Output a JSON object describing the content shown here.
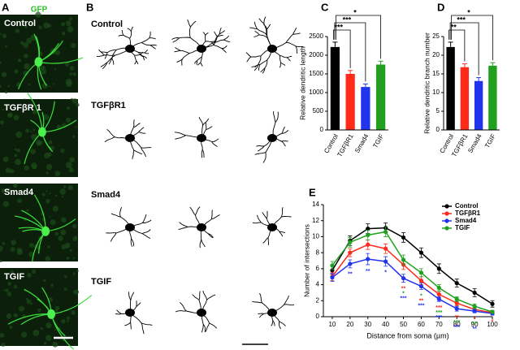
{
  "figure": {
    "A": {
      "label": "A",
      "stain": "GFP",
      "rows": [
        "Control",
        "TGFβR 1",
        "Smad4",
        "TGIF"
      ]
    },
    "B": {
      "label": "B",
      "rows": [
        "Control",
        "TGFβR1",
        "Smad4",
        "TGIF"
      ]
    }
  },
  "chart_data": [
    {
      "panel": "C",
      "type": "bar",
      "ylabel": "Relative dendritic length",
      "categories": [
        "Control",
        "TGFβR1",
        "Smad4",
        "TGIF"
      ],
      "values": [
        2220,
        1500,
        1150,
        1750
      ],
      "errors": [
        130,
        90,
        80,
        90
      ],
      "colors": [
        "#000000",
        "#ff2a1a",
        "#2233ee",
        "#1fa01f"
      ],
      "ylim": [
        0,
        2500
      ],
      "yticks": [
        0,
        500,
        1000,
        1500,
        2000,
        2500
      ],
      "significance": [
        {
          "from": 0,
          "to": 1,
          "label": "***"
        },
        {
          "from": 0,
          "to": 2,
          "label": "***"
        },
        {
          "from": 0,
          "to": 3,
          "label": "*"
        }
      ]
    },
    {
      "panel": "D",
      "type": "bar",
      "ylabel": "Relative dendritic branch number",
      "categories": [
        "Control",
        "TGFβR1",
        "Smad4",
        "TGIF"
      ],
      "values": [
        22.2,
        16.8,
        13.1,
        17.2
      ],
      "errors": [
        1.3,
        0.9,
        0.9,
        0.8
      ],
      "colors": [
        "#000000",
        "#ff2a1a",
        "#2233ee",
        "#1fa01f"
      ],
      "ylim": [
        0,
        25
      ],
      "yticks": [
        0,
        5,
        10,
        15,
        20,
        25
      ],
      "significance": [
        {
          "from": 0,
          "to": 1,
          "label": "**"
        },
        {
          "from": 0,
          "to": 2,
          "label": "***"
        },
        {
          "from": 0,
          "to": 3,
          "label": "*"
        }
      ]
    },
    {
      "panel": "E",
      "type": "line",
      "xlabel": "Distance from soma (µm)",
      "ylabel": "Number of intersections",
      "x": [
        10,
        20,
        30,
        40,
        50,
        60,
        70,
        80,
        90,
        100
      ],
      "series": [
        {
          "name": "Control",
          "color": "#000000",
          "values": [
            5.8,
            9.5,
            11.0,
            11.1,
            9.9,
            8.0,
            6.0,
            4.2,
            3.0,
            1.6
          ],
          "errors": [
            0.5,
            0.6,
            0.6,
            0.6,
            0.6,
            0.6,
            0.6,
            0.5,
            0.5,
            0.4
          ]
        },
        {
          "name": "TGFβR1",
          "color": "#ff2a1a",
          "values": [
            5.0,
            8.0,
            9.0,
            8.5,
            6.5,
            4.5,
            2.8,
            1.7,
            0.9,
            0.5
          ],
          "errors": [
            0.5,
            0.5,
            0.6,
            0.6,
            0.6,
            0.5,
            0.4,
            0.3,
            0.3,
            0.2
          ]
        },
        {
          "name": "Smad4",
          "color": "#2233ee",
          "values": [
            4.9,
            6.6,
            7.2,
            6.9,
            4.8,
            3.8,
            2.2,
            1.0,
            0.7,
            0.4
          ],
          "errors": [
            0.5,
            0.5,
            0.7,
            0.6,
            0.5,
            0.4,
            0.3,
            0.3,
            0.2,
            0.2
          ]
        },
        {
          "name": "TGIF",
          "color": "#1fa01f",
          "values": [
            6.4,
            9.3,
            10.2,
            10.6,
            7.1,
            5.5,
            3.6,
            2.2,
            1.3,
            0.6
          ],
          "errors": [
            0.5,
            0.6,
            0.6,
            0.6,
            0.6,
            0.5,
            0.4,
            0.3,
            0.3,
            0.2
          ]
        }
      ],
      "xlim": [
        5,
        100
      ],
      "xticks": [
        10,
        20,
        30,
        40,
        50,
        60,
        70,
        80,
        90,
        100
      ],
      "ylim": [
        0,
        14
      ],
      "yticks": [
        0,
        2,
        4,
        6,
        8,
        10,
        12,
        14
      ],
      "legend": "upper right",
      "annotations": [
        {
          "x": 20,
          "series": 2,
          "label": "**"
        },
        {
          "x": 30,
          "series": 2,
          "label": "**"
        },
        {
          "x": 40,
          "series": 2,
          "label": "*"
        },
        {
          "x": 50,
          "series": 1,
          "label": "**"
        },
        {
          "x": 50,
          "series": 3,
          "label": "*"
        },
        {
          "x": 50,
          "series": 2,
          "label": "***"
        },
        {
          "x": 60,
          "series": 3,
          "label": "*"
        },
        {
          "x": 60,
          "series": 1,
          "label": "**"
        },
        {
          "x": 60,
          "series": 2,
          "label": "***"
        },
        {
          "x": 70,
          "series": 1,
          "label": "***"
        },
        {
          "x": 70,
          "series": 3,
          "label": "***"
        },
        {
          "x": 70,
          "series": 2,
          "label": "***"
        },
        {
          "x": 80,
          "series": 1,
          "label": "**"
        },
        {
          "x": 80,
          "series": 3,
          "label": "***"
        },
        {
          "x": 80,
          "series": 2,
          "label": "***"
        },
        {
          "x": 90,
          "series": 1,
          "label": "*"
        },
        {
          "x": 90,
          "series": 3,
          "label": "**"
        },
        {
          "x": 90,
          "series": 2,
          "label": "**"
        },
        {
          "x": 100,
          "series": 1,
          "label": "*"
        }
      ]
    }
  ]
}
